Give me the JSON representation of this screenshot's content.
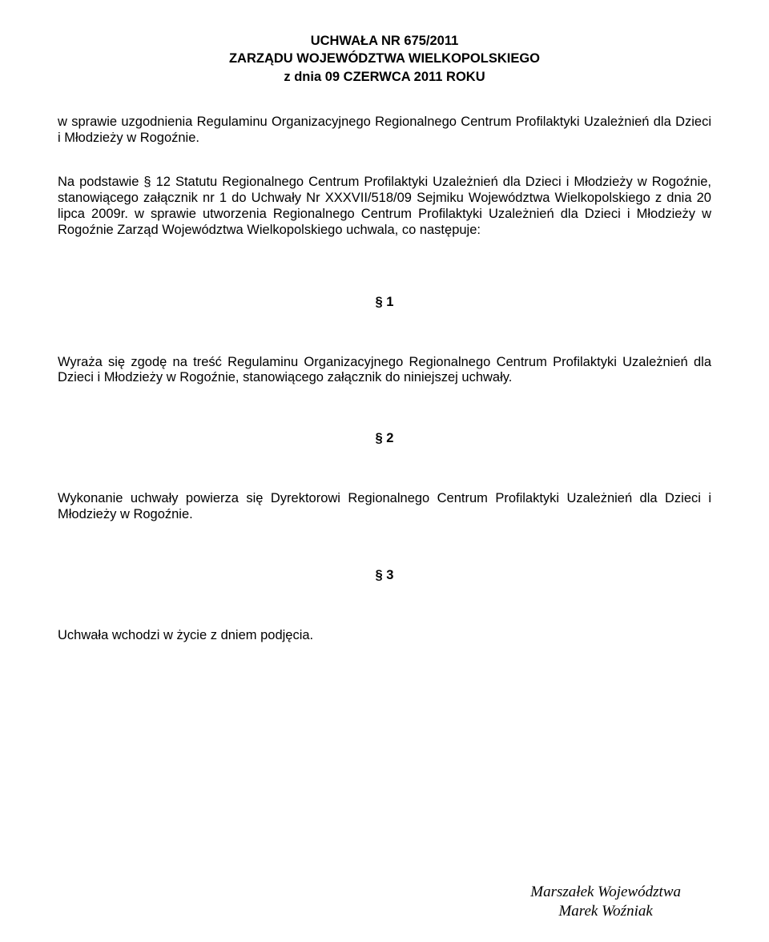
{
  "header": {
    "line1": "UCHWAŁA NR  675/2011",
    "line2": "ZARZĄDU WOJEWÓDZTWA WIELKOPOLSKIEGO",
    "line3": "z dnia 09 CZERWCA 2011 ROKU"
  },
  "intro": "w sprawie uzgodnienia Regulaminu Organizacyjnego Regionalnego Centrum Profilaktyki Uzależnień dla Dzieci i Młodzieży w Rogoźnie.",
  "basis": "Na podstawie § 12 Statutu Regionalnego Centrum Profilaktyki Uzależnień dla Dzieci i Młodzieży w Rogoźnie, stanowiącego załącznik nr 1 do Uchwały Nr XXXVII/518/09 Sejmiku Województwa Wielkopolskiego z dnia 20 lipca 2009r. w sprawie utworzenia Regionalnego Centrum Profilaktyki Uzależnień dla Dzieci i Młodzieży w Rogoźnie Zarząd Województwa Wielkopolskiego uchwala, co następuje:",
  "sections": {
    "s1_marker": "§ 1",
    "s1_text": "Wyraża się zgodę na treść Regulaminu Organizacyjnego Regionalnego Centrum Profilaktyki Uzależnień dla Dzieci i Młodzieży w Rogoźnie, stanowiącego załącznik do niniejszej uchwały.",
    "s2_marker": "§ 2",
    "s2_text": "Wykonanie uchwały powierza się Dyrektorowi Regionalnego Centrum Profilaktyki Uzależnień dla Dzieci i Młodzieży w Rogoźnie.",
    "s3_marker": "§ 3",
    "s3_text": "Uchwała wchodzi w życie z dniem podjęcia."
  },
  "signature": {
    "line1": "Marszałek Województwa",
    "line2": "Marek Woźniak"
  }
}
